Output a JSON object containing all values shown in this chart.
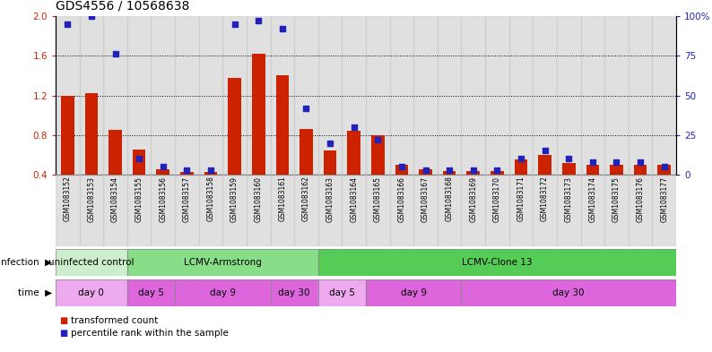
{
  "title": "GDS4556 / 10568638",
  "samples": [
    "GSM1083152",
    "GSM1083153",
    "GSM1083154",
    "GSM1083155",
    "GSM1083156",
    "GSM1083157",
    "GSM1083158",
    "GSM1083159",
    "GSM1083160",
    "GSM1083161",
    "GSM1083162",
    "GSM1083163",
    "GSM1083164",
    "GSM1083165",
    "GSM1083166",
    "GSM1083167",
    "GSM1083168",
    "GSM1083169",
    "GSM1083170",
    "GSM1083171",
    "GSM1083172",
    "GSM1083173",
    "GSM1083174",
    "GSM1083175",
    "GSM1083176",
    "GSM1083177"
  ],
  "red_values": [
    1.2,
    1.22,
    0.85,
    0.65,
    0.45,
    0.43,
    0.43,
    1.38,
    1.62,
    1.4,
    0.86,
    0.64,
    0.84,
    0.8,
    0.5,
    0.45,
    0.44,
    0.44,
    0.44,
    0.55,
    0.6,
    0.52,
    0.5,
    0.5,
    0.5,
    0.5
  ],
  "blue_values": [
    95,
    100,
    76,
    10,
    5,
    3,
    3,
    95,
    97,
    92,
    42,
    20,
    30,
    22,
    5,
    3,
    3,
    3,
    3,
    10,
    15,
    10,
    8,
    8,
    8,
    5
  ],
  "y_min": 0.4,
  "y_max": 2.0,
  "y_ticks_red": [
    0.4,
    0.8,
    1.2,
    1.6,
    2.0
  ],
  "y_ticks_blue": [
    0,
    25,
    50,
    75,
    100
  ],
  "y_labels_blue": [
    "0",
    "25",
    "50",
    "75",
    "100%"
  ],
  "red_color": "#CC2200",
  "blue_color": "#2222BB",
  "bar_bg_color": "#CCCCCC",
  "legend_red": "transformed count",
  "legend_blue": "percentile rank within the sample",
  "inf_groups": [
    {
      "start": 0,
      "end": 3,
      "label": "uninfected control",
      "color": "#cceecc"
    },
    {
      "start": 3,
      "end": 11,
      "label": "LCMV-Armstrong",
      "color": "#88dd88"
    },
    {
      "start": 11,
      "end": 26,
      "label": "LCMV-Clone 13",
      "color": "#55cc55"
    }
  ],
  "time_groups": [
    {
      "start": 0,
      "end": 3,
      "label": "day 0",
      "color": "#eeaaee"
    },
    {
      "start": 3,
      "end": 5,
      "label": "day 5",
      "color": "#dd66dd"
    },
    {
      "start": 5,
      "end": 9,
      "label": "day 9",
      "color": "#dd66dd"
    },
    {
      "start": 9,
      "end": 11,
      "label": "day 30",
      "color": "#dd66dd"
    },
    {
      "start": 11,
      "end": 13,
      "label": "day 5",
      "color": "#eeaaee"
    },
    {
      "start": 13,
      "end": 17,
      "label": "day 9",
      "color": "#dd66dd"
    },
    {
      "start": 17,
      "end": 26,
      "label": "day 30",
      "color": "#dd66dd"
    }
  ]
}
